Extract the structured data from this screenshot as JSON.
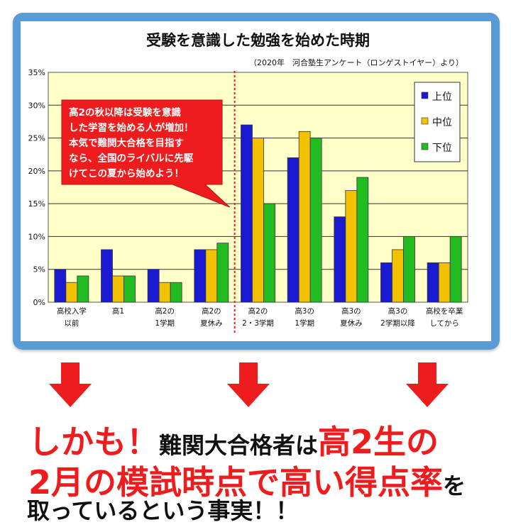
{
  "chart_data": {
    "type": "bar",
    "title": "受験を意識した勉強を始めた時期",
    "subtitle": "（2020年　河合塾生アンケート（ロンゲストイヤー）より）",
    "categories": [
      [
        "高校入学",
        "以前"
      ],
      [
        "高1"
      ],
      [
        "高2の",
        "1学期"
      ],
      [
        "高2の",
        "夏休み"
      ],
      [
        "高2の",
        "2・3学期"
      ],
      [
        "高3の",
        "1学期"
      ],
      [
        "高3の",
        "夏休み"
      ],
      [
        "高3の",
        "2学期以降"
      ],
      [
        "高校を卒業",
        "してから"
      ]
    ],
    "series": [
      {
        "name": "上位",
        "color": "#1a1ad2",
        "values": [
          5,
          8,
          5,
          8,
          27,
          22,
          13,
          6,
          6
        ]
      },
      {
        "name": "中位",
        "color": "#f2c200",
        "values": [
          3,
          4,
          3,
          8,
          25,
          26,
          17,
          8,
          6
        ]
      },
      {
        "name": "下位",
        "color": "#22bb22",
        "values": [
          4,
          4,
          3,
          9,
          15,
          25,
          19,
          10,
          10
        ]
      }
    ],
    "ylim": [
      0,
      35
    ],
    "yticks": [
      "0%",
      "5%",
      "10%",
      "15%",
      "20%",
      "25%",
      "30%",
      "35%"
    ],
    "grid": true,
    "legend_position": "top-right",
    "plot_background": "#ffffc8",
    "annotation": {
      "lines": [
        "高2の秋以降は受験を意識",
        "した学習を始める人が増加！",
        "本気で難関大合格を目指す",
        "なら、全国のライバルに先駆",
        "けてこの夏から始めよう！"
      ],
      "color": "#ee1c1c"
    }
  },
  "bottom": {
    "line1_red1": "しかも！",
    "line1_black": "難関大合格者は",
    "line1_red2": "高2生の",
    "line2_red": "2月の模試時点で高い得点率",
    "line2_black": "を",
    "line3_black": "取っているという事実！！"
  },
  "colors": {
    "frame": "#5b9bd5",
    "arrow": "#ee1c1c"
  }
}
